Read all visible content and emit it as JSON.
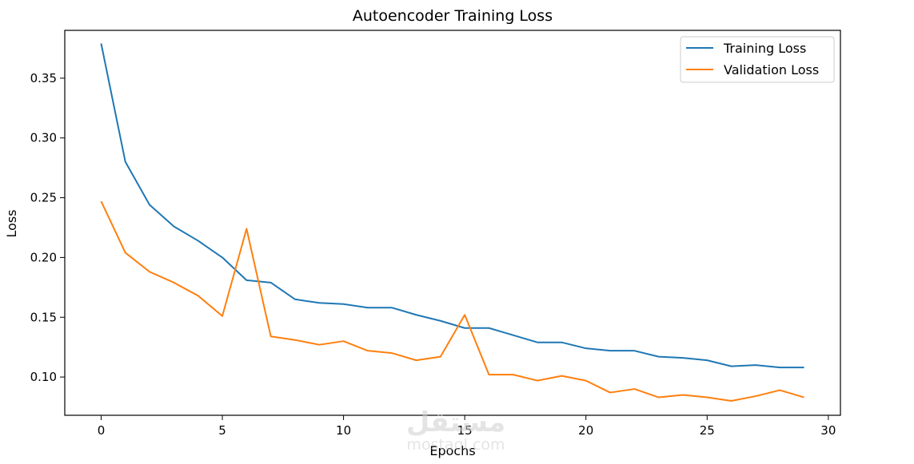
{
  "chart_data": {
    "type": "line",
    "title": "Autoencoder Training Loss",
    "xlabel": "Epochs",
    "ylabel": "Loss",
    "xlim": [
      -1.5,
      30.5
    ],
    "ylim": [
      0.068,
      0.39
    ],
    "xticks": [
      0,
      5,
      10,
      15,
      20,
      25,
      30
    ],
    "yticks": [
      0.1,
      0.15,
      0.2,
      0.25,
      0.3,
      0.35
    ],
    "ytick_labels": [
      "0.10",
      "0.15",
      "0.20",
      "0.25",
      "0.30",
      "0.35"
    ],
    "xtick_labels": [
      "0",
      "5",
      "10",
      "15",
      "20",
      "25",
      "30"
    ],
    "grid": false,
    "legend_position": "top-right",
    "x": [
      0,
      1,
      2,
      3,
      4,
      5,
      6,
      7,
      8,
      9,
      10,
      11,
      12,
      13,
      14,
      15,
      16,
      17,
      18,
      19,
      20,
      21,
      22,
      23,
      24,
      25,
      26,
      27,
      28,
      29
    ],
    "series": [
      {
        "name": "Training Loss",
        "color": "#1f77b4",
        "values": [
          0.379,
          0.28,
          0.244,
          0.226,
          0.214,
          0.2,
          0.181,
          0.179,
          0.165,
          0.162,
          0.161,
          0.158,
          0.158,
          0.152,
          0.147,
          0.141,
          0.141,
          0.135,
          0.129,
          0.129,
          0.124,
          0.122,
          0.122,
          0.117,
          0.116,
          0.114,
          0.109,
          0.11,
          0.108,
          0.108
        ]
      },
      {
        "name": "Validation Loss",
        "color": "#ff7f0e",
        "values": [
          0.247,
          0.204,
          0.188,
          0.179,
          0.168,
          0.151,
          0.224,
          0.134,
          0.131,
          0.127,
          0.13,
          0.122,
          0.12,
          0.114,
          0.117,
          0.152,
          0.102,
          0.102,
          0.097,
          0.101,
          0.097,
          0.087,
          0.09,
          0.083,
          0.085,
          0.083,
          0.08,
          0.084,
          0.089,
          0.083
        ]
      }
    ]
  },
  "watermark": {
    "logo_text": "مستقل",
    "url_text": "mostaql.com"
  }
}
